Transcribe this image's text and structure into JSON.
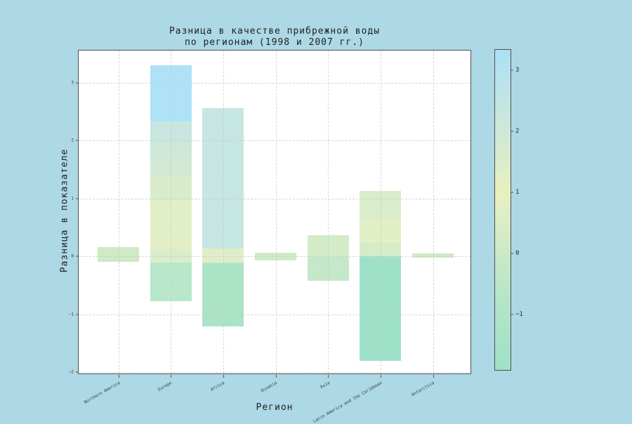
{
  "title_lines": [
    "Разница в качестве прибрежной воды",
    "по регионам (1998 и 2007 гг.)"
  ],
  "colors": {
    "background": "#add8e6",
    "plot_background": "#ffffff",
    "spine": "#4f4f4f",
    "grid": "#c9c9c9",
    "text": "#1f1f1f",
    "tick_text": "#3a3a3a"
  },
  "chart_data": {
    "type": "bar",
    "title": "Разница в качестве прибрежной воды по регионам (1998 и 2007 гг.)",
    "xlabel": "Регион",
    "ylabel": "Разница в показателе",
    "ylim": [
      -2.05,
      3.56
    ],
    "grid": true,
    "legend_position": "colorbar-right",
    "yticks": [
      {
        "v": 3,
        "label": "3"
      },
      {
        "v": 2,
        "label": "2"
      },
      {
        "v": 1,
        "label": "1"
      },
      {
        "v": 0,
        "label": "0"
      },
      {
        "v": -1,
        "label": "−1"
      },
      {
        "v": -2,
        "label": "−2"
      }
    ],
    "categories": [
      "Northern America",
      "Europe",
      "Africa",
      "Oceania",
      "Asia",
      "Latin America and the Caribbean",
      "Antarctica"
    ],
    "bars": [
      {
        "label": "Northern America",
        "from": -0.1,
        "to": 0.16,
        "segments": [
          {
            "from": 0.16,
            "to": -0.1,
            "color": "#cfeac6"
          }
        ]
      },
      {
        "label": "Europe",
        "from": -0.78,
        "to": 3.3,
        "segments": [
          {
            "from": 3.3,
            "to": 2.33,
            "color": "#afe2f7"
          },
          {
            "from": 2.33,
            "to": 1.99,
            "color": "#c8e6e0"
          },
          {
            "from": 1.99,
            "to": 1.69,
            "color": "#cde8d9"
          },
          {
            "from": 1.69,
            "to": 1.38,
            "color": "#d2e9d3"
          },
          {
            "from": 1.38,
            "to": 0.95,
            "color": "#d9ecca"
          },
          {
            "from": 0.95,
            "to": 0.11,
            "color": "#e2efc6"
          },
          {
            "from": 0.11,
            "to": -0.11,
            "color": "#d9edcb"
          },
          {
            "from": -0.11,
            "to": -0.78,
            "color": "#b9e7cb"
          }
        ]
      },
      {
        "label": "Africa",
        "from": -1.21,
        "to": 2.57,
        "segments": [
          {
            "from": 2.57,
            "to": 0.14,
            "color": "#c6e6e2"
          },
          {
            "from": 0.14,
            "to": -0.11,
            "color": "#dfeec6"
          },
          {
            "from": -0.11,
            "to": -1.21,
            "color": "#abe3c7"
          }
        ]
      },
      {
        "label": "Oceania",
        "from": -0.07,
        "to": 0.06,
        "segments": [
          {
            "from": 0.06,
            "to": -0.07,
            "color": "#cfeac6"
          }
        ]
      },
      {
        "label": "Asia",
        "from": -0.42,
        "to": 0.37,
        "segments": [
          {
            "from": 0.37,
            "to": 0.0,
            "color": "#d2ecc8"
          },
          {
            "from": 0.0,
            "to": -0.42,
            "color": "#c5e8c9"
          }
        ]
      },
      {
        "label": "Latin America and the Caribbean",
        "from": -1.81,
        "to": 1.13,
        "segments": [
          {
            "from": 1.13,
            "to": 0.64,
            "color": "#d8edc9"
          },
          {
            "from": 0.64,
            "to": 0.23,
            "color": "#e2efc5"
          },
          {
            "from": 0.23,
            "to": 0.0,
            "color": "#d5ecc8"
          },
          {
            "from": 0.0,
            "to": -1.81,
            "color": "#9fe1c8"
          }
        ]
      },
      {
        "label": "Antarctica",
        "from": -0.02,
        "to": 0.05,
        "segments": [
          {
            "from": 0.05,
            "to": -0.02,
            "color": "#cfeac6"
          }
        ]
      }
    ],
    "colorbar": {
      "vmin": -1.91,
      "vmax": 3.33,
      "ticks": [
        {
          "v": 3,
          "label": "3"
        },
        {
          "v": 2,
          "label": "2"
        },
        {
          "v": 1,
          "label": "1"
        },
        {
          "v": 0,
          "label": "0"
        },
        {
          "v": -1,
          "label": "−1"
        }
      ],
      "stops": [
        {
          "v": 3.33,
          "color": "#abe0f6"
        },
        {
          "v": 3.0,
          "color": "#b4e2ee"
        },
        {
          "v": 2.5,
          "color": "#c2e5e3"
        },
        {
          "v": 2.0,
          "color": "#cde8d8"
        },
        {
          "v": 1.5,
          "color": "#dbecca"
        },
        {
          "v": 1.0,
          "color": "#e9f0c0"
        },
        {
          "v": 0.5,
          "color": "#daedc6"
        },
        {
          "v": 0.0,
          "color": "#cbeac7"
        },
        {
          "v": -0.5,
          "color": "#bce6c8"
        },
        {
          "v": -1.0,
          "color": "#afe4c8"
        },
        {
          "v": -1.91,
          "color": "#a0e1c8"
        }
      ]
    }
  }
}
